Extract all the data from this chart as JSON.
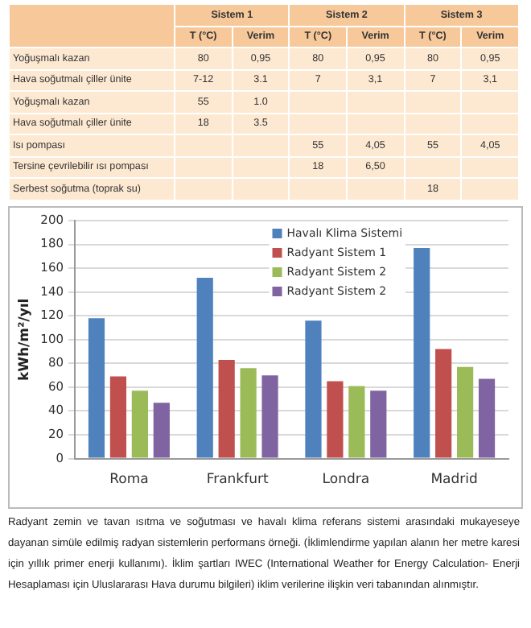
{
  "chart_data": [
    {
      "type": "other",
      "annotations": [
        "Sistem 1",
        "Sistem 2",
        "Sistem 3"
      ],
      "categories": [
        "T (°C)",
        "Verim",
        "T (°C)",
        "Verim",
        "T (°C)",
        "Verim"
      ],
      "y_categories": [
        "Yoğuşmalı kazan",
        "Hava soğutmalı çiller ünite",
        "Yoğuşmalı kazan",
        "Hava soğutmalı çiller ünite",
        "Isı pompası",
        "Tersine çevrilebilir ısı pompası",
        "Serbest soğutma (toprak su)"
      ],
      "cell_labels": [
        [
          "80",
          "0,95",
          "80",
          "0,95",
          "80",
          "0,95"
        ],
        [
          "7-12",
          "3.1",
          "7",
          "3,1",
          "7",
          "3,1"
        ],
        [
          "55",
          "1.0",
          null,
          null,
          null,
          null
        ],
        [
          "18",
          "3.5",
          null,
          null,
          null,
          null
        ],
        [
          null,
          null,
          "55",
          "4,05",
          "55",
          "4,05"
        ],
        [
          null,
          null,
          "18",
          "6,50",
          null,
          null
        ],
        [
          null,
          null,
          null,
          null,
          "18",
          null
        ]
      ]
    },
    {
      "type": "bar",
      "ylabel": "kWh/m²/yıl",
      "categories": [
        "Roma",
        "Frankfurt",
        "Londra",
        "Madrid"
      ],
      "series": [
        {
          "name": "Havalı Klima Sistemi",
          "color": "#4f81bd",
          "values": [
            118,
            152,
            116,
            177
          ]
        },
        {
          "name": "Radyant Sistem 1",
          "color": "#c0504d",
          "values": [
            69,
            83,
            65,
            92
          ]
        },
        {
          "name": "Radyant Sistem 2",
          "color": "#9bbb59",
          "values": [
            57,
            76,
            61,
            77
          ]
        },
        {
          "name": "Radyant Sistem 2",
          "color": "#8064a2",
          "values": [
            47,
            70,
            57,
            67
          ]
        }
      ],
      "ylim": [
        0,
        200
      ],
      "yticks": [
        0,
        20,
        40,
        60,
        80,
        100,
        120,
        140,
        160,
        180,
        200
      ],
      "grid": "y",
      "legend": "top right",
      "annotations": [
        "Radyant zemin ve tavan ısıtma ve soğutması ve havalı klima referans sistemi arasındaki mukayeseye dayanan simüle edilmiş radyan sistemlerin performans örneği. (İklimlendirme yapılan alanın her metre karesi için yıllık primer enerji kullanımı). İklim şartları IWEC (International Weather for Energy Calculation- Enerji Hesaplaması için Uluslararası Hava durumu bilgileri) iklim verilerine ilişkin veri tabanından alınmıştır."
      ]
    }
  ]
}
